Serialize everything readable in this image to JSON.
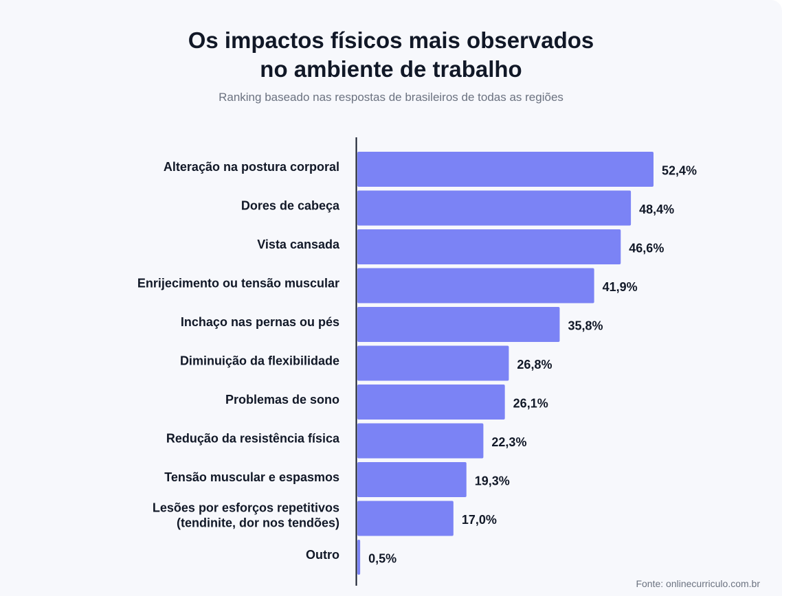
{
  "title_line1": "Os impactos físicos mais observados",
  "title_line2": "no ambiente de trabalho",
  "subtitle": "Ranking baseado nas respostas de brasileiros de todas as regiões",
  "source": "Fonte: onlinecurriculo.com.br",
  "colors": {
    "bar": "#7b83f5",
    "axis": "#111827",
    "background": "#f7f8fc"
  },
  "chart_data": {
    "type": "bar",
    "orientation": "horizontal",
    "categories": [
      [
        "Alteração na postura corporal"
      ],
      [
        "Dores de cabeça"
      ],
      [
        "Vista cansada"
      ],
      [
        "Enrijecimento ou tensão muscular"
      ],
      [
        "Inchaço nas pernas ou pés"
      ],
      [
        "Diminuição da flexibilidade"
      ],
      [
        "Problemas de sono"
      ],
      [
        "Redução da resistência física"
      ],
      [
        "Tensão muscular e espasmos"
      ],
      [
        "Lesões por esforços repetitivos",
        "(tendinite, dor nos tendões)"
      ],
      [
        "Outro"
      ]
    ],
    "values": [
      52.4,
      48.4,
      46.6,
      41.9,
      35.8,
      26.8,
      26.1,
      22.3,
      19.3,
      17.0,
      0.5
    ],
    "value_labels": [
      "52,4%",
      "48,4%",
      "46,6%",
      "41,9%",
      "35,8%",
      "26,8%",
      "26,1%",
      "22,3%",
      "19,3%",
      "17,0%",
      "0,5%"
    ],
    "unit": "%",
    "xlim": [
      0,
      52.4
    ],
    "grid": false,
    "legend": "none"
  }
}
